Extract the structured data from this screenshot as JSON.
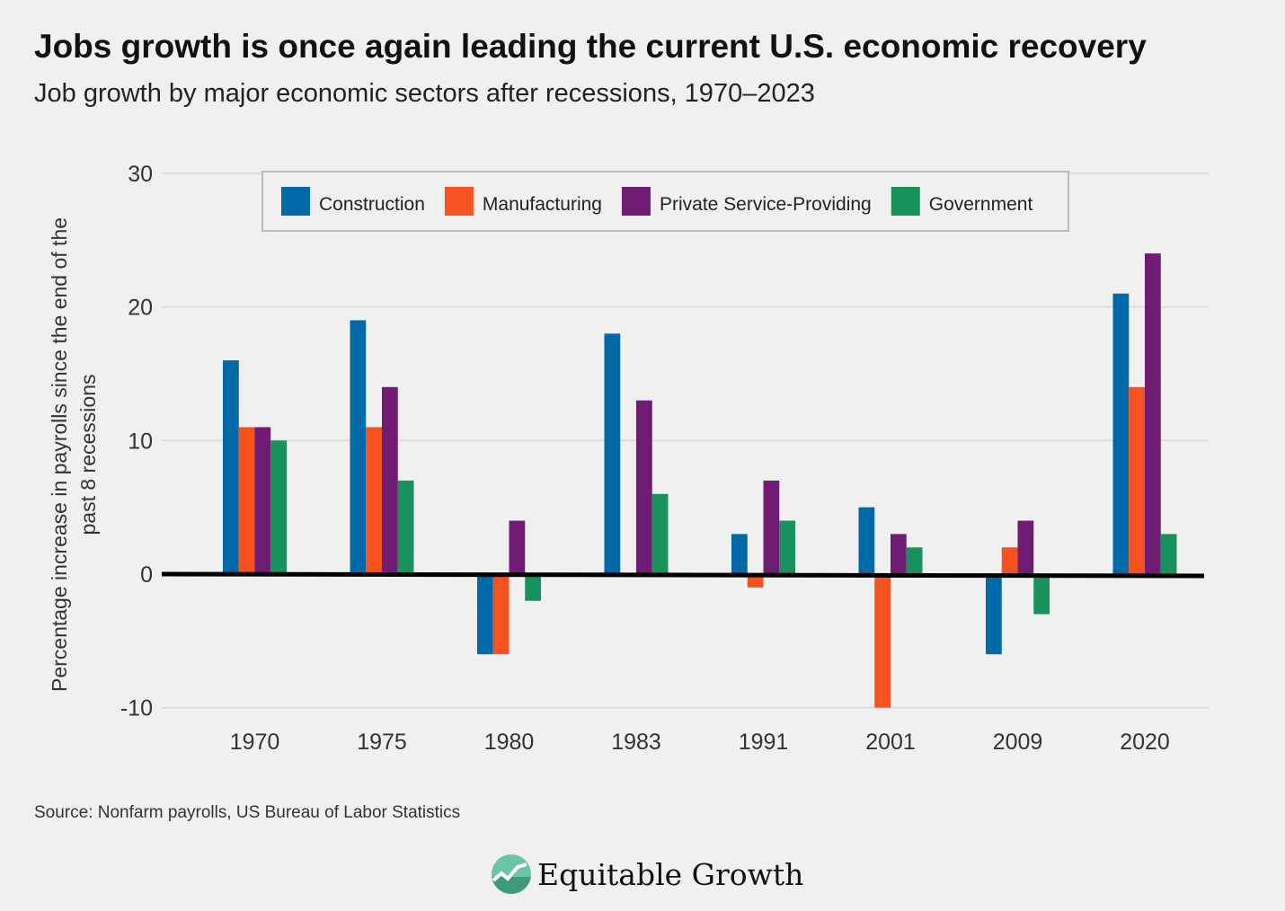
{
  "title": "Jobs growth is once again leading the current U.S. economic recovery",
  "subtitle": "Job growth by major economic sectors after recessions, 1970–2023",
  "source": "Source: Nonfarm payrolls, US Bureau of Labor Statistics",
  "logo": "Equitable Growth",
  "chart_data": {
    "type": "bar",
    "title": "Jobs growth is once again leading the current U.S. economic recovery",
    "subtitle": "Job growth by major economic sectors after recessions, 1970–2023",
    "xlabel": "",
    "ylabel": "Percentage increase in payrolls since the end of the past 8 recessions",
    "ylabel_lines": [
      "Percentage increase in payrolls since the end of the",
      "past 8 recessions"
    ],
    "ylim": [
      -10,
      30
    ],
    "yticks": [
      -10,
      0,
      10,
      20,
      30
    ],
    "grid": true,
    "legend_placement": "top",
    "categories": [
      "1970",
      "1975",
      "1980",
      "1983",
      "1991",
      "2001",
      "2009",
      "2020"
    ],
    "series": [
      {
        "name": "Construction",
        "color": "#0069a8",
        "values": [
          16,
          19,
          -6,
          18,
          3,
          5,
          -6,
          21
        ]
      },
      {
        "name": "Manufacturing",
        "color": "#f55220",
        "values": [
          11,
          11,
          -6,
          0,
          -1,
          -10,
          2,
          14
        ]
      },
      {
        "name": "Private Service-Providing",
        "color": "#701c72",
        "values": [
          11,
          14,
          4,
          13,
          7,
          3,
          4,
          24
        ]
      },
      {
        "name": "Government",
        "color": "#18915c",
        "values": [
          10,
          7,
          -2,
          6,
          4,
          2,
          -3,
          3
        ]
      }
    ]
  }
}
